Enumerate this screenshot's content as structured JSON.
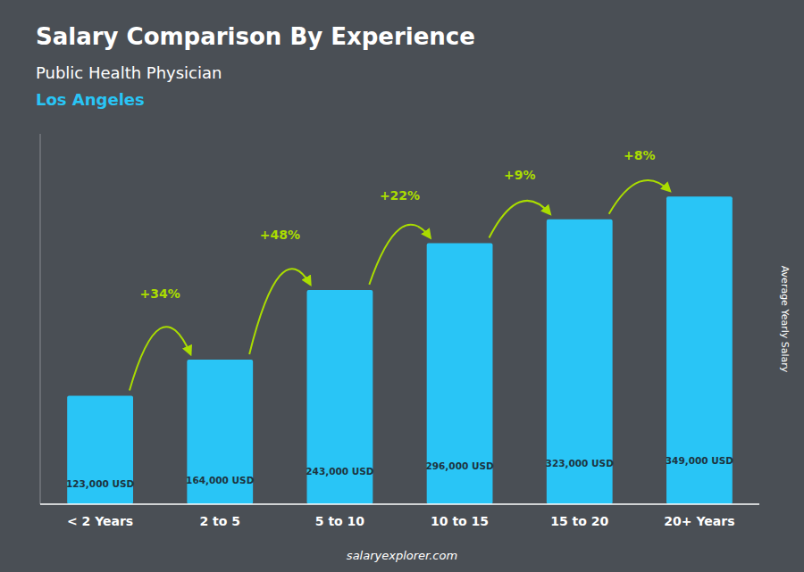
{
  "chart_data": {
    "type": "bar",
    "title": "Salary Comparison By Experience",
    "subtitle": "Public Health Physician",
    "location": "Los Angeles",
    "categories": [
      "< 2 Years",
      "2 to 5",
      "5 to 10",
      "10 to 15",
      "15 to 20",
      "20+ Years"
    ],
    "values": [
      123000,
      164000,
      243000,
      296000,
      323000,
      349000
    ],
    "value_labels": [
      "123,000 USD",
      "164,000 USD",
      "243,000 USD",
      "296,000 USD",
      "323,000 USD",
      "349,000 USD"
    ],
    "data_labels": true,
    "annotations": [
      "+34%",
      "+48%",
      "+22%",
      "+9%",
      "+8%"
    ],
    "color": "#29C5F6",
    "ylabel": "Average Yearly Salary",
    "source": "salaryexplorer.com",
    "ylim": [
      0,
      420000
    ],
    "yticks": [],
    "tick_labels": "x",
    "grid": false
  }
}
